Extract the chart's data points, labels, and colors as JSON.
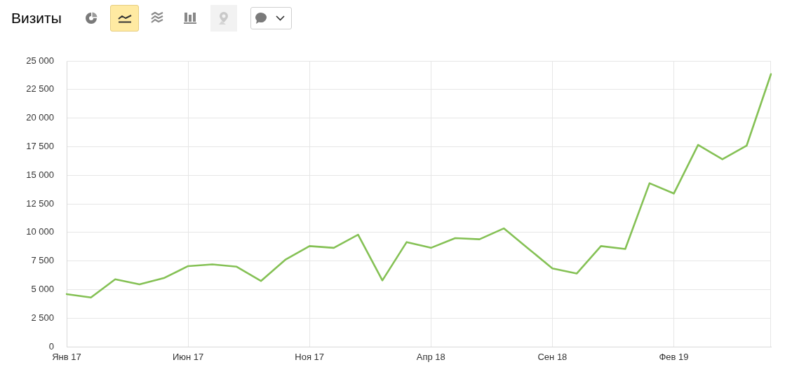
{
  "chart_data": {
    "type": "line",
    "title": "Визиты",
    "categories": [
      "Янв 17",
      null,
      null,
      null,
      null,
      "Июн 17",
      null,
      null,
      null,
      null,
      "Ноя 17",
      null,
      null,
      null,
      null,
      "Апр 18",
      null,
      null,
      null,
      null,
      "Сен 18",
      null,
      null,
      null,
      null,
      "Фев 19",
      null,
      null,
      null,
      null
    ],
    "series": [
      {
        "color": "#85c155",
        "values": [
          4600,
          4300,
          5900,
          5450,
          6000,
          7050,
          7200,
          7000,
          5750,
          7600,
          8800,
          8650,
          9800,
          5800,
          9150,
          8650,
          9500,
          9400,
          10350,
          8600,
          6850,
          6400,
          8800,
          8550,
          14300,
          13400,
          17650,
          16400,
          17600,
          23850
        ]
      }
    ],
    "ylim": [
      0,
      25000
    ],
    "yticks": [
      0,
      {
        "value": 2500,
        "label": "2 500"
      },
      {
        "value": 5000,
        "label": "5 000"
      },
      {
        "value": 7500,
        "label": "7 500"
      },
      {
        "value": 10000,
        "label": "10 000"
      },
      {
        "value": 12500,
        "label": "12 500"
      },
      {
        "value": 15000,
        "label": "15 000"
      },
      {
        "value": 17500,
        "label": "17 500"
      },
      {
        "value": 20000,
        "label": "20 000"
      },
      {
        "value": 22500,
        "label": "22 500"
      },
      {
        "value": 25000,
        "label": "25 000"
      }
    ],
    "grid": true
  }
}
